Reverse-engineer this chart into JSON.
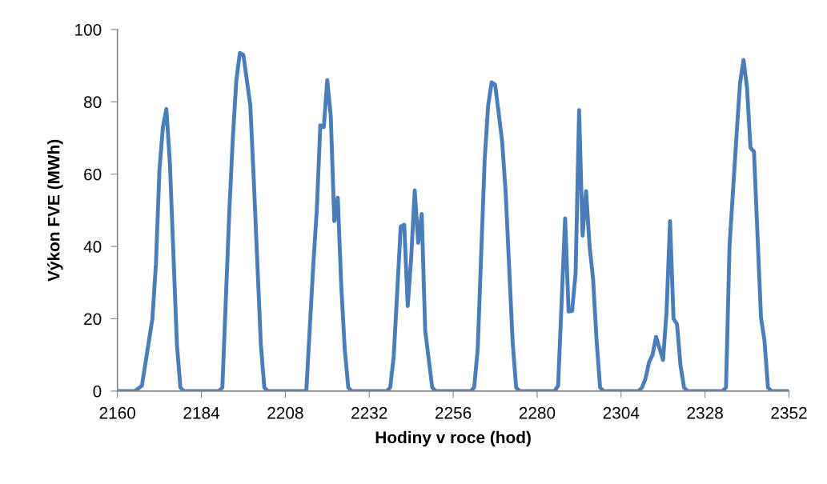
{
  "chart_data": {
    "type": "line",
    "xlabel": "Hodiny v roce (hod)",
    "ylabel": "Výkon FVE (MWh)",
    "xlim": [
      2160,
      2352
    ],
    "xticks": [
      2160,
      2184,
      2208,
      2232,
      2256,
      2280,
      2304,
      2328,
      2352
    ],
    "ylim": [
      0,
      100
    ],
    "yticks": [
      0,
      20,
      40,
      60,
      80,
      100
    ],
    "grid": false,
    "legend": false,
    "marker": "none",
    "line_style": "solid",
    "series": [
      {
        "color": "#4a7ebb",
        "x": [
          2160,
          2165,
          2167,
          2170,
          2171,
          2172,
          2173,
          2174,
          2175,
          2177,
          2178,
          2179,
          2189,
          2190,
          2192,
          2193,
          2194,
          2195,
          2196,
          2198,
          2199,
          2201,
          2202,
          2203,
          2214,
          2216,
          2217,
          2218,
          2219,
          2220,
          2221,
          2222,
          2223,
          2224,
          2225,
          2226,
          2227,
          2237,
          2238,
          2239,
          2241,
          2242,
          2243,
          2244,
          2245,
          2246,
          2247,
          2248,
          2250,
          2251,
          2261,
          2262,
          2263,
          2265,
          2266,
          2267,
          2268,
          2270,
          2271,
          2273,
          2274,
          2275,
          2285,
          2286,
          2288,
          2289,
          2290,
          2291,
          2292,
          2293,
          2294,
          2295,
          2296,
          2297,
          2298,
          2299,
          2309,
          2310,
          2311,
          2312,
          2313,
          2314,
          2316,
          2317,
          2318,
          2319,
          2320,
          2321,
          2322,
          2323,
          2333,
          2334,
          2335,
          2337,
          2338,
          2339,
          2340,
          2341,
          2342,
          2344,
          2345,
          2346,
          2347,
          2352
        ],
        "values": [
          0,
          0,
          1.5,
          20,
          35,
          61,
          73,
          78,
          63,
          13,
          1,
          0,
          0,
          1,
          50,
          70,
          86,
          93.5,
          93,
          79,
          58,
          13,
          1,
          0,
          0,
          35,
          50,
          73.5,
          73,
          86,
          76,
          47,
          53.5,
          29,
          11.5,
          1,
          0,
          0,
          1,
          9.7,
          45.5,
          46,
          23.5,
          37,
          55.5,
          41,
          49,
          16.7,
          1,
          0,
          0,
          1,
          11.5,
          64,
          79,
          85.4,
          84.7,
          69,
          55,
          13.5,
          1,
          0,
          0,
          1.5,
          47.8,
          22,
          22.2,
          32.6,
          77.7,
          43,
          55.3,
          40,
          31,
          14,
          1,
          0,
          0,
          1,
          3.5,
          8,
          10,
          15,
          8.6,
          22,
          47,
          20,
          18.5,
          7,
          1,
          0,
          0,
          1,
          40,
          70.6,
          85,
          91.6,
          84,
          67.3,
          66.2,
          20.4,
          14,
          1,
          0,
          0
        ]
      }
    ]
  }
}
